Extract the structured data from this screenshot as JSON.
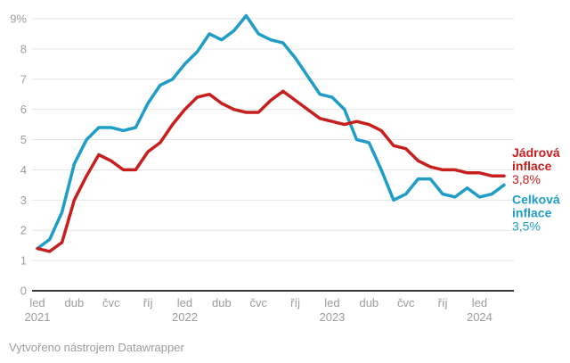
{
  "chart_data": {
    "type": "line",
    "x_unit": "month",
    "x_range": "led 2021 – bře 2024",
    "x_tick_labels": [
      {
        "index": 0,
        "month": "led",
        "year": "2021"
      },
      {
        "index": 3,
        "month": "dub"
      },
      {
        "index": 6,
        "month": "čvc"
      },
      {
        "index": 9,
        "month": "říj"
      },
      {
        "index": 12,
        "month": "led",
        "year": "2022"
      },
      {
        "index": 15,
        "month": "dub"
      },
      {
        "index": 18,
        "month": "čvc"
      },
      {
        "index": 21,
        "month": "říj"
      },
      {
        "index": 24,
        "month": "led",
        "year": "2023"
      },
      {
        "index": 27,
        "month": "dub"
      },
      {
        "index": 30,
        "month": "čvc"
      },
      {
        "index": 33,
        "month": "říj"
      },
      {
        "index": 36,
        "month": "led",
        "year": "2024"
      }
    ],
    "y_axis": {
      "min": 0,
      "max": 9,
      "grid": true,
      "ticks": [
        {
          "value": 0,
          "label": "0"
        },
        {
          "value": 1,
          "label": "1"
        },
        {
          "value": 2,
          "label": "2"
        },
        {
          "value": 3,
          "label": "3"
        },
        {
          "value": 4,
          "label": "4"
        },
        {
          "value": 5,
          "label": "5"
        },
        {
          "value": 6,
          "label": "6"
        },
        {
          "value": 7,
          "label": "7"
        },
        {
          "value": 8,
          "label": "8"
        },
        {
          "value": 9,
          "label": "9%"
        }
      ]
    },
    "legend_position": "right-end-labels",
    "series": [
      {
        "id": "celkova",
        "name": "Celková inflace",
        "label_lines": [
          "Celková",
          "inflace"
        ],
        "latest_value_label": "3,5%",
        "color": "#1f9dc7",
        "values": [
          1.4,
          1.7,
          2.6,
          4.2,
          5.0,
          5.4,
          5.4,
          5.3,
          5.4,
          6.2,
          6.8,
          7.0,
          7.5,
          7.9,
          8.5,
          8.3,
          8.6,
          9.1,
          8.5,
          8.3,
          8.2,
          7.7,
          7.1,
          6.5,
          6.4,
          6.0,
          5.0,
          4.9,
          4.0,
          3.0,
          3.2,
          3.7,
          3.7,
          3.2,
          3.1,
          3.4,
          3.1,
          3.2,
          3.5
        ]
      },
      {
        "id": "jadrova",
        "name": "Jádrová inflace",
        "label_lines": [
          "Jádrová",
          "inflace"
        ],
        "latest_value_label": "3,8%",
        "color": "#c71f1e",
        "values": [
          1.4,
          1.3,
          1.6,
          3.0,
          3.8,
          4.5,
          4.3,
          4.0,
          4.0,
          4.6,
          4.9,
          5.5,
          6.0,
          6.4,
          6.5,
          6.2,
          6.0,
          5.9,
          5.9,
          6.3,
          6.6,
          6.3,
          6.0,
          5.7,
          5.6,
          5.5,
          5.6,
          5.5,
          5.3,
          4.8,
          4.7,
          4.3,
          4.1,
          4.0,
          4.0,
          3.9,
          3.9,
          3.8,
          3.8
        ]
      }
    ]
  },
  "colors": {
    "grid": "#e4e4e4",
    "axis": "#1a1a1a",
    "tick_text": "#9c9c9c",
    "background": "#ffffff"
  },
  "footer": {
    "attribution": "Vytvořeno nástrojem Datawrapper"
  }
}
